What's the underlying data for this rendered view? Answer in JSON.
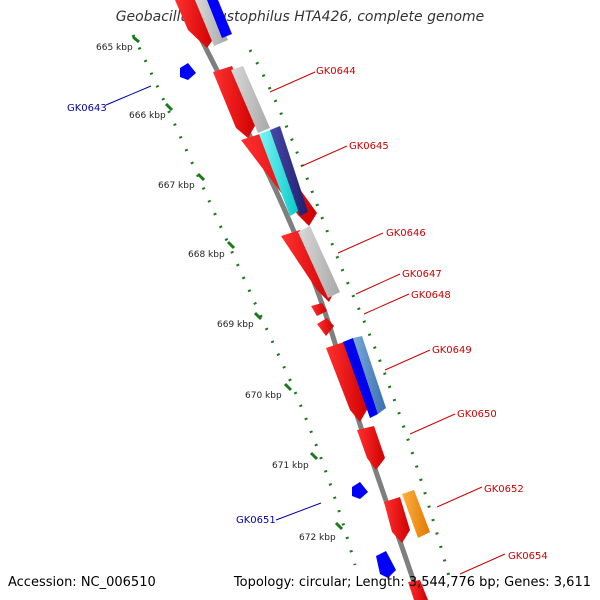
{
  "title": "Geobacillus kaustophilus HTA426, complete genome",
  "footer": {
    "accession": "Accession: NC_006510",
    "summary": "Topology: circular; Length: 3,544,776 bp; Genes: 3,611"
  },
  "ruler": {
    "ticks": [
      "665 kbp",
      "666 kbp",
      "667 kbp",
      "668 kbp",
      "669 kbp",
      "670 kbp",
      "671 kbp",
      "672 kbp"
    ]
  },
  "genes": {
    "forward_labels": [
      "GK0644",
      "GK0645",
      "GK0646",
      "GK0647",
      "GK0648",
      "GK0649",
      "GK0650",
      "GK0652",
      "GK0654"
    ],
    "reverse_labels": [
      "GK0643",
      "GK0651"
    ]
  },
  "colors": {
    "cds": "#ff0000",
    "reverse_gene": "#0000ff",
    "grey_feature": "#bdbdbd",
    "cyan_feature": "#00e5e5",
    "navy_feature": "#2b2b8c",
    "orange_feature": "#ff8c00",
    "forward_label": "#cc0000",
    "reverse_label": "#0000aa",
    "ruler_tick": "#1a7a1a",
    "backbone": "#7f7f7f"
  }
}
